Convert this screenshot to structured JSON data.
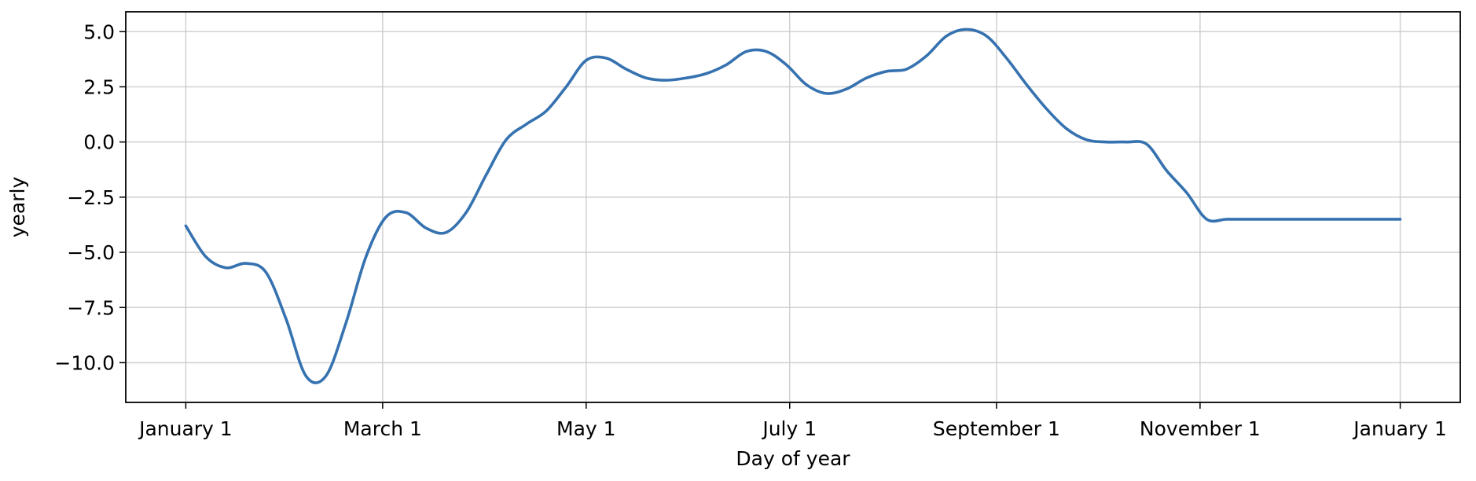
{
  "chart_data": {
    "type": "line",
    "title": "",
    "xlabel": "Day of year",
    "ylabel": "yearly",
    "x_ticks": [
      {
        "day": 0,
        "label": "January 1"
      },
      {
        "day": 59,
        "label": "March 1"
      },
      {
        "day": 120,
        "label": "May 1"
      },
      {
        "day": 181,
        "label": "July 1"
      },
      {
        "day": 243,
        "label": "September 1"
      },
      {
        "day": 304,
        "label": "November 1"
      },
      {
        "day": 364,
        "label": "January 1"
      }
    ],
    "y_ticks": [
      {
        "value": 5.0,
        "label": "5.0"
      },
      {
        "value": 2.5,
        "label": "2.5"
      },
      {
        "value": 0.0,
        "label": "0.0"
      },
      {
        "value": -2.5,
        "label": "−2.5"
      },
      {
        "value": -5.0,
        "label": "−5.0"
      },
      {
        "value": -7.5,
        "label": "−7.5"
      },
      {
        "value": -10.0,
        "label": "−10.0"
      }
    ],
    "xlim": [
      -18,
      382
    ],
    "ylim": [
      -11.8,
      5.9
    ],
    "grid": true,
    "color": "#3672b0",
    "series": [
      {
        "x": [
          0,
          6,
          12,
          18,
          24,
          30,
          36,
          42,
          48,
          54,
          60,
          66,
          72,
          78,
          84,
          90,
          96,
          102,
          108,
          114,
          120,
          126,
          132,
          138,
          144,
          150,
          156,
          162,
          168,
          174,
          180,
          186,
          192,
          198,
          204,
          210,
          216,
          222,
          228,
          234,
          240,
          246,
          252,
          258,
          264,
          270,
          276,
          282,
          288,
          294,
          300,
          306,
          312,
          318,
          324,
          330,
          336,
          342,
          348,
          354,
          360,
          364
        ],
        "y": [
          -3.8,
          -5.2,
          -5.7,
          -5.5,
          -5.9,
          -8.0,
          -10.6,
          -10.6,
          -8.2,
          -5.2,
          -3.4,
          -3.2,
          -3.9,
          -4.1,
          -3.2,
          -1.5,
          0.1,
          0.8,
          1.4,
          2.5,
          3.7,
          3.8,
          3.3,
          2.9,
          2.8,
          2.9,
          3.1,
          3.5,
          4.1,
          4.1,
          3.5,
          2.6,
          2.2,
          2.4,
          2.9,
          3.2,
          3.3,
          3.9,
          4.8,
          5.1,
          4.8,
          3.8,
          2.6,
          1.5,
          0.6,
          0.1,
          0.0,
          0.0,
          -0.1,
          -1.3,
          -2.3,
          -3.5,
          -3.5,
          -3.5,
          -3.5,
          -3.5,
          -3.5,
          -3.5,
          -3.5,
          -3.5,
          -3.5,
          -3.5
        ]
      }
    ]
  }
}
